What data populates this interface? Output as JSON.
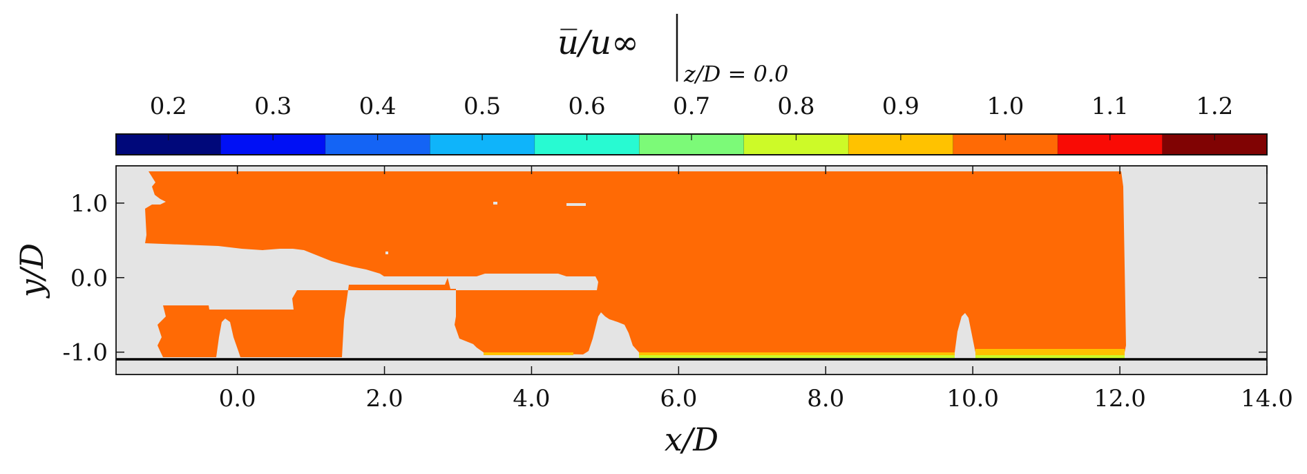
{
  "chart_data": {
    "type": "heatmap",
    "title": "u̅/u∞",
    "title_subscript": "z/D = 0.0",
    "xlabel": "x/D",
    "ylabel": "y/D",
    "xlim": [
      -1.65,
      14.0
    ],
    "ylim": [
      -1.3,
      1.5
    ],
    "x_ticks": [
      "0.0",
      "2.0",
      "4.0",
      "6.0",
      "8.0",
      "10.0",
      "12.0",
      "14.0"
    ],
    "x_tick_values": [
      0,
      2,
      4,
      6,
      8,
      10,
      12,
      14
    ],
    "y_ticks": [
      "1.0",
      "0.0",
      "-1.0"
    ],
    "y_tick_values": [
      1.0,
      0.0,
      -1.0
    ],
    "colorbar": {
      "labels": [
        "0.2",
        "0.3",
        "0.4",
        "0.5",
        "0.6",
        "0.7",
        "0.8",
        "0.9",
        "1.0",
        "1.1",
        "1.2"
      ],
      "colors": [
        "#00087a",
        "#0010f5",
        "#1464f5",
        "#0fb4fa",
        "#28fad2",
        "#7cfa78",
        "#cdfa28",
        "#ffc200",
        "#ff6a05",
        "#f90b05",
        "#800303"
      ]
    },
    "field": {
      "dominant_value": 1.0,
      "dominant_color": "#ff6a05",
      "background_color": "#e4e4e4",
      "wall_y": -1.1,
      "near_wall_values": [
        0.8,
        0.9
      ],
      "measured_x_range": [
        -1.1,
        12.05
      ],
      "measured_y_range": [
        -1.08,
        1.42
      ]
    },
    "grid": false,
    "legend": "none",
    "colorbar_position": "top"
  }
}
